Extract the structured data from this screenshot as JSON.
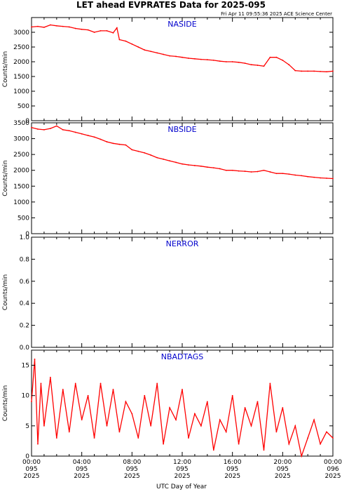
{
  "title": "LET ahead EVPRATES Data for 2025-095",
  "timestamp": "Fri Apr 11 09:55:36 2025 ACE Science Center",
  "xlabel": "UTC Day of Year",
  "colors": {
    "series": "#ff0000",
    "label": "#0000cc",
    "axis": "#000000"
  },
  "chart_data": [
    {
      "type": "line",
      "title": "NASIDE",
      "ylabel": "Counts/min",
      "xlim": [
        0,
        24
      ],
      "ylim": [
        0,
        3500
      ],
      "yticks": [
        0,
        500,
        1000,
        1500,
        2000,
        2500,
        3000
      ],
      "x": [
        0,
        0.5,
        1,
        1.5,
        2,
        2.5,
        3,
        3.5,
        4,
        4.5,
        5,
        5.5,
        6,
        6.5,
        6.8,
        7,
        7.5,
        8,
        8.5,
        9,
        9.5,
        10,
        10.5,
        11,
        11.5,
        12,
        12.5,
        13,
        13.5,
        14,
        14.5,
        15,
        15.5,
        16,
        16.5,
        17,
        17.5,
        18,
        18.5,
        19,
        19.5,
        20,
        20.5,
        21,
        21.5,
        22,
        22.5,
        23,
        23.5,
        24
      ],
      "values": [
        3180,
        3200,
        3170,
        3250,
        3220,
        3200,
        3180,
        3130,
        3100,
        3080,
        3000,
        3050,
        3050,
        2980,
        3150,
        2750,
        2700,
        2600,
        2500,
        2400,
        2350,
        2300,
        2250,
        2200,
        2180,
        2150,
        2120,
        2100,
        2080,
        2070,
        2050,
        2020,
        2000,
        2000,
        1980,
        1950,
        1900,
        1880,
        1850,
        2150,
        2150,
        2050,
        1900,
        1700,
        1680,
        1680,
        1680,
        1670,
        1660,
        1680
      ]
    },
    {
      "type": "line",
      "title": "NBSIDE",
      "ylabel": "Counts/min",
      "xlim": [
        0,
        24
      ],
      "ylim": [
        0,
        3500
      ],
      "yticks": [
        0,
        500,
        1000,
        1500,
        2000,
        2500,
        3000,
        3500
      ],
      "x": [
        0,
        0.5,
        1,
        1.5,
        2,
        2.5,
        3,
        3.5,
        4,
        4.5,
        5,
        5.5,
        6,
        6.5,
        7,
        7.5,
        8,
        8.5,
        9,
        9.5,
        10,
        10.5,
        11,
        11.5,
        12,
        12.5,
        13,
        13.5,
        14,
        14.5,
        15,
        15.5,
        16,
        16.5,
        17,
        17.5,
        18,
        18.5,
        19,
        19.5,
        20,
        20.5,
        21,
        21.5,
        22,
        22.5,
        23,
        23.5,
        24
      ],
      "values": [
        3350,
        3300,
        3280,
        3320,
        3400,
        3280,
        3250,
        3200,
        3150,
        3100,
        3050,
        2980,
        2900,
        2850,
        2820,
        2800,
        2650,
        2600,
        2550,
        2480,
        2400,
        2350,
        2300,
        2250,
        2200,
        2170,
        2150,
        2130,
        2100,
        2080,
        2050,
        2000,
        2000,
        1980,
        1970,
        1950,
        1960,
        2000,
        1950,
        1900,
        1900,
        1880,
        1850,
        1830,
        1800,
        1780,
        1760,
        1750,
        1740
      ]
    },
    {
      "type": "line",
      "title": "NERROR",
      "ylabel": "Counts/min",
      "xlim": [
        0,
        24
      ],
      "ylim": [
        0,
        1
      ],
      "yticks": [
        0.0,
        0.2,
        0.4,
        0.6,
        0.8,
        1.0
      ],
      "x": [],
      "values": []
    },
    {
      "type": "line",
      "title": "NBADTAGS",
      "ylabel": "Counts/min",
      "xlim": [
        0,
        24
      ],
      "ylim": [
        0,
        17.5
      ],
      "yticks": [
        0,
        5,
        10,
        15
      ],
      "x": [
        0,
        0.25,
        0.5,
        0.75,
        1,
        1.5,
        2,
        2.5,
        3,
        3.5,
        4,
        4.5,
        5,
        5.5,
        6,
        6.5,
        7,
        7.5,
        8,
        8.5,
        9,
        9.5,
        10,
        10.5,
        11,
        11.5,
        12,
        12.5,
        13,
        13.5,
        14,
        14.5,
        15,
        15.5,
        16,
        16.5,
        17,
        17.5,
        18,
        18.5,
        19,
        19.5,
        20,
        20.5,
        21,
        21.5,
        22,
        22.5,
        23,
        23.5,
        24
      ],
      "values": [
        9,
        16,
        2,
        12,
        5,
        13,
        3,
        11,
        4,
        12,
        6,
        10,
        3,
        12,
        5,
        11,
        4,
        9,
        7,
        3,
        10,
        5,
        12,
        2,
        8,
        6,
        11,
        3,
        7,
        5,
        9,
        1,
        6,
        4,
        10,
        2,
        8,
        5,
        9,
        1,
        12,
        4,
        8,
        2,
        5,
        0,
        3,
        6,
        2,
        4,
        3
      ]
    }
  ],
  "xticks": [
    {
      "time": "00:00",
      "doy": "095",
      "year": "2025"
    },
    {
      "time": "04:00",
      "doy": "095",
      "year": "2025"
    },
    {
      "time": "08:00",
      "doy": "095",
      "year": "2025"
    },
    {
      "time": "12:00",
      "doy": "095",
      "year": "2025"
    },
    {
      "time": "16:00",
      "doy": "095",
      "year": "2025"
    },
    {
      "time": "20:00",
      "doy": "095",
      "year": "2025"
    },
    {
      "time": "00:00",
      "doy": "096",
      "year": "2025"
    }
  ]
}
